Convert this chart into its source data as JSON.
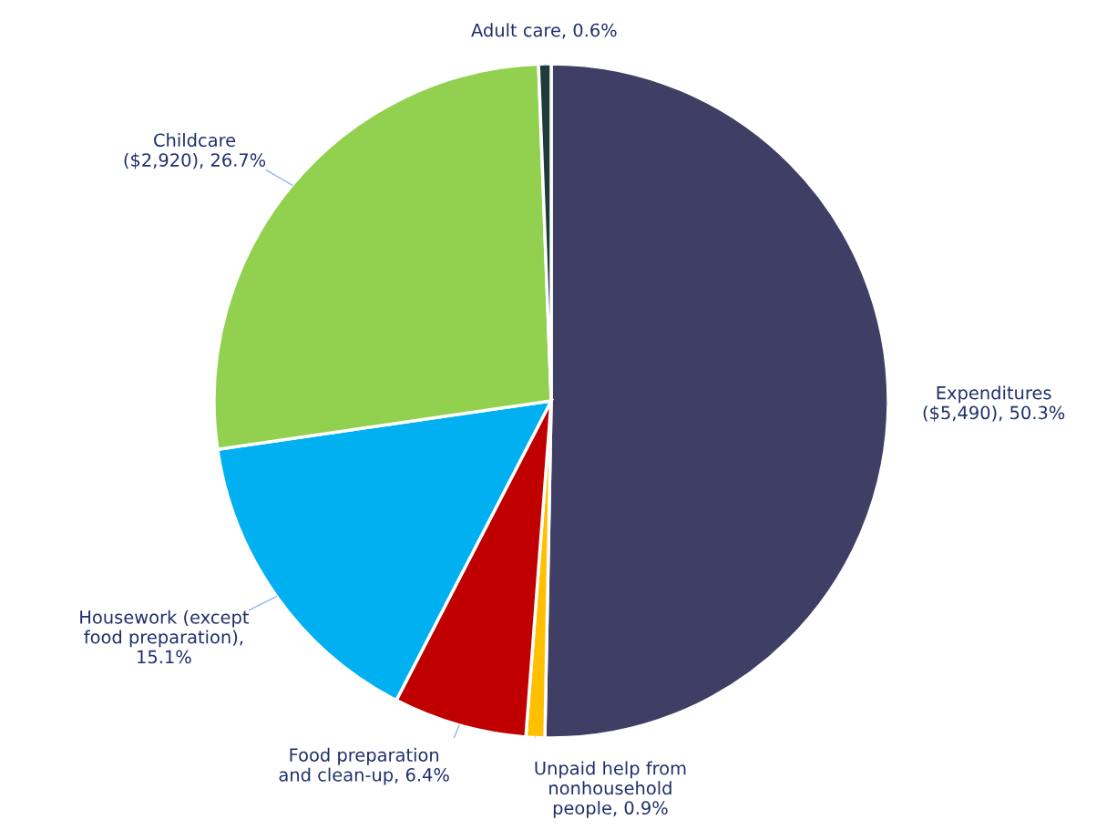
{
  "chart_data": {
    "type": "pie",
    "categories": [
      "Expenditures ($5,490), 50.3%",
      "Unpaid help from nonhousehold people, 0.9%",
      "Food preparation and clean-up, 6.4%",
      "Housework (except food preparation), 15.1%",
      "Childcare ($2,920), 26.7%",
      "Adult care, 0.6%"
    ],
    "values": [
      50.3,
      0.9,
      6.4,
      15.1,
      26.7,
      0.6
    ],
    "colors": [
      "#3f3f65",
      "#ffc000",
      "#c00000",
      "#00b0f0",
      "#92d050",
      "#1f3a3a"
    ]
  }
}
